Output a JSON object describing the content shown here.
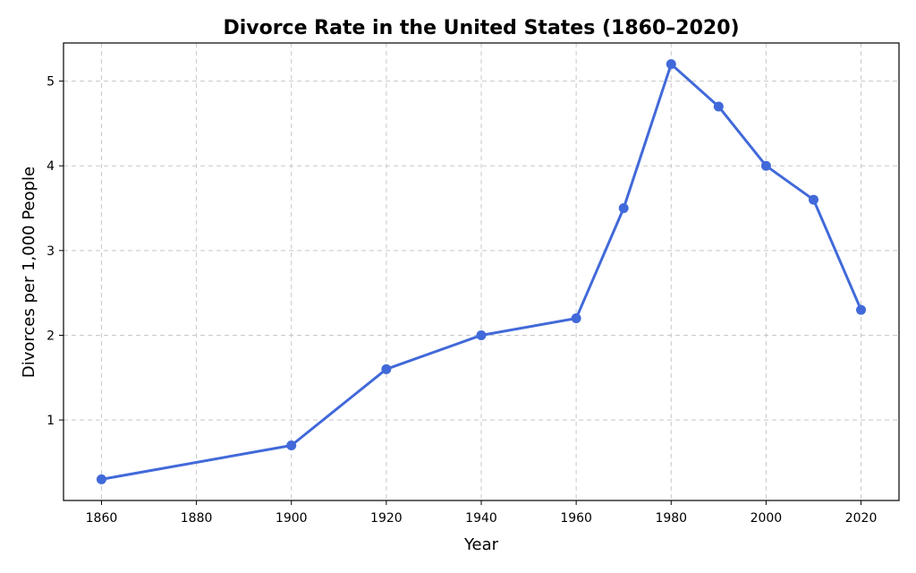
{
  "chart_data": {
    "type": "line",
    "title": "Divorce Rate in the United States (1860–2020)",
    "xlabel": "Year",
    "ylabel": "Divorces per 1,000 People",
    "xlim": [
      1852,
      2028
    ],
    "ylim": [
      0.05,
      5.45
    ],
    "xticks": [
      1860,
      1880,
      1900,
      1920,
      1940,
      1960,
      1980,
      2000,
      2020
    ],
    "yticks": [
      1,
      2,
      3,
      4,
      5
    ],
    "grid": true,
    "series": [
      {
        "color": "#4169d9",
        "x": [
          1860,
          1900,
          1920,
          1940,
          1960,
          1970,
          1980,
          1990,
          2000,
          2010,
          2020
        ],
        "y": [
          0.3,
          0.7,
          1.6,
          2.0,
          2.2,
          3.5,
          5.2,
          4.7,
          4.0,
          3.6,
          2.3
        ]
      }
    ]
  }
}
